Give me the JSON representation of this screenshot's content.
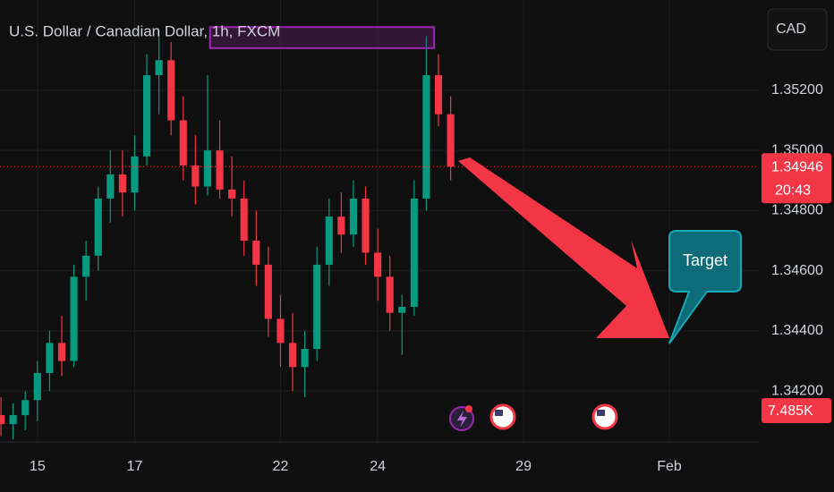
{
  "chart_data": {
    "type": "candlestick",
    "title": "U.S. Dollar / Canadian Dollar, 1h, FXCM",
    "currency_button": "CAD",
    "annotation_text": "Target",
    "up_color": "#089981",
    "down_color": "#f23645",
    "grid": true,
    "xlim": [
      -0.77,
      14.84
    ],
    "xticks": [
      {
        "value": 0,
        "label": "15"
      },
      {
        "value": 2,
        "label": "17"
      },
      {
        "value": 5,
        "label": "22"
      },
      {
        "value": 7,
        "label": "24"
      },
      {
        "value": 10,
        "label": "29"
      },
      {
        "value": 13,
        "label": "Feb"
      }
    ],
    "ylim": [
      1.34028,
      1.355
    ],
    "yticks": [
      {
        "value": 1.342,
        "label": "1.34200"
      },
      {
        "value": 1.344,
        "label": "1.34400"
      },
      {
        "value": 1.346,
        "label": "1.34600"
      },
      {
        "value": 1.348,
        "label": "1.34800"
      },
      {
        "value": 1.35,
        "label": "1.35000"
      },
      {
        "value": 1.352,
        "label": "1.35200"
      }
    ],
    "last_price": 1.34946,
    "countdown": "20:43",
    "current_volume": "7.485K",
    "rectangle": {
      "color": "#9c27b0",
      "x": [
        3.55,
        8.16
      ],
      "y": [
        1.3541,
        1.3534
      ]
    },
    "x": [
      -0.75,
      -0.5,
      -0.25,
      0,
      0.25,
      0.5,
      0.75,
      1,
      1.25,
      1.5,
      1.75,
      2,
      2.25,
      2.5,
      2.75,
      3,
      3.25,
      3.5,
      3.75,
      4,
      4.25,
      4.5,
      4.75,
      5,
      5.25,
      5.5,
      5.75,
      6,
      6.25,
      6.5,
      6.75,
      7,
      7.25,
      7.5,
      7.75,
      8,
      8.25,
      8.5
    ],
    "open": [
      1.3412,
      1.3409,
      1.3412,
      1.3417,
      1.3426,
      1.3436,
      1.343,
      1.3458,
      1.3465,
      1.3484,
      1.3492,
      1.3486,
      1.3498,
      1.3525,
      1.353,
      1.351,
      1.3495,
      1.3488,
      1.35,
      1.3487,
      1.3484,
      1.347,
      1.3462,
      1.3444,
      1.3436,
      1.3428,
      1.3434,
      1.3462,
      1.3478,
      1.3472,
      1.3484,
      1.3466,
      1.3458,
      1.3446,
      1.3448,
      1.3484,
      1.3525,
      1.3512
    ],
    "high": [
      1.3418,
      1.3416,
      1.342,
      1.343,
      1.344,
      1.3445,
      1.3462,
      1.347,
      1.3488,
      1.35,
      1.35,
      1.3505,
      1.3532,
      1.354,
      1.3536,
      1.3518,
      1.3505,
      1.3525,
      1.351,
      1.3498,
      1.349,
      1.348,
      1.3468,
      1.3452,
      1.3446,
      1.344,
      1.3468,
      1.3484,
      1.3486,
      1.349,
      1.3488,
      1.3474,
      1.3465,
      1.3452,
      1.349,
      1.3538,
      1.3532,
      1.3518
    ],
    "low": [
      1.3405,
      1.3404,
      1.3407,
      1.341,
      1.342,
      1.3425,
      1.3428,
      1.345,
      1.346,
      1.3476,
      1.3478,
      1.348,
      1.3495,
      1.3512,
      1.3505,
      1.349,
      1.3482,
      1.3485,
      1.3484,
      1.3478,
      1.3465,
      1.3455,
      1.3438,
      1.3428,
      1.342,
      1.3418,
      1.343,
      1.3455,
      1.3466,
      1.3468,
      1.3462,
      1.345,
      1.344,
      1.3432,
      1.3445,
      1.348,
      1.3508,
      1.349
    ],
    "close": [
      1.3409,
      1.3412,
      1.3417,
      1.3426,
      1.3436,
      1.343,
      1.3458,
      1.3465,
      1.3484,
      1.3492,
      1.3486,
      1.3498,
      1.3525,
      1.353,
      1.351,
      1.3495,
      1.3488,
      1.35,
      1.3487,
      1.3484,
      1.347,
      1.3462,
      1.3444,
      1.3436,
      1.3428,
      1.3434,
      1.3462,
      1.3478,
      1.3472,
      1.3484,
      1.3466,
      1.3458,
      1.3446,
      1.3448,
      1.3484,
      1.3525,
      1.3512,
      1.34946
    ]
  }
}
